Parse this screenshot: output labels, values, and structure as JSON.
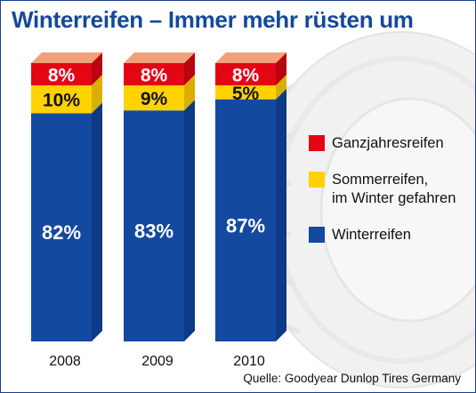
{
  "colors": {
    "title": "#14489c",
    "ganzjahres": "#e30613",
    "sommer": "#ffd200",
    "winter": "#1449a0",
    "top_face": "#f4a07a"
  },
  "background_image": "tire-silhouette",
  "chart_data": {
    "type": "bar",
    "stacked": true,
    "title": "Winterreifen – Immer mehr rüsten um",
    "categories": [
      "2008",
      "2009",
      "2010"
    ],
    "series": [
      {
        "name": "Winterreifen",
        "values": [
          82,
          83,
          87
        ],
        "labels": [
          "82%",
          "83%",
          "87%"
        ]
      },
      {
        "name": "Sommerreifen, im Winter gefahren",
        "values": [
          10,
          9,
          5
        ],
        "labels": [
          "10%",
          "9%",
          "5%"
        ]
      },
      {
        "name": "Ganzjahresreifen",
        "values": [
          8,
          8,
          8
        ],
        "labels": [
          "8%",
          "8%",
          "8%"
        ]
      }
    ],
    "ylim": [
      0,
      100
    ],
    "legend_position": "right",
    "source": "Quelle: Goodyear Dunlop Tires Germany"
  },
  "legend": [
    {
      "label": "Ganzjahresreifen",
      "color": "#e30613"
    },
    {
      "label": "Sommerreifen,\nim Winter gefahren",
      "color": "#ffd200"
    },
    {
      "label": "Winterreifen",
      "color": "#1449a0"
    }
  ]
}
